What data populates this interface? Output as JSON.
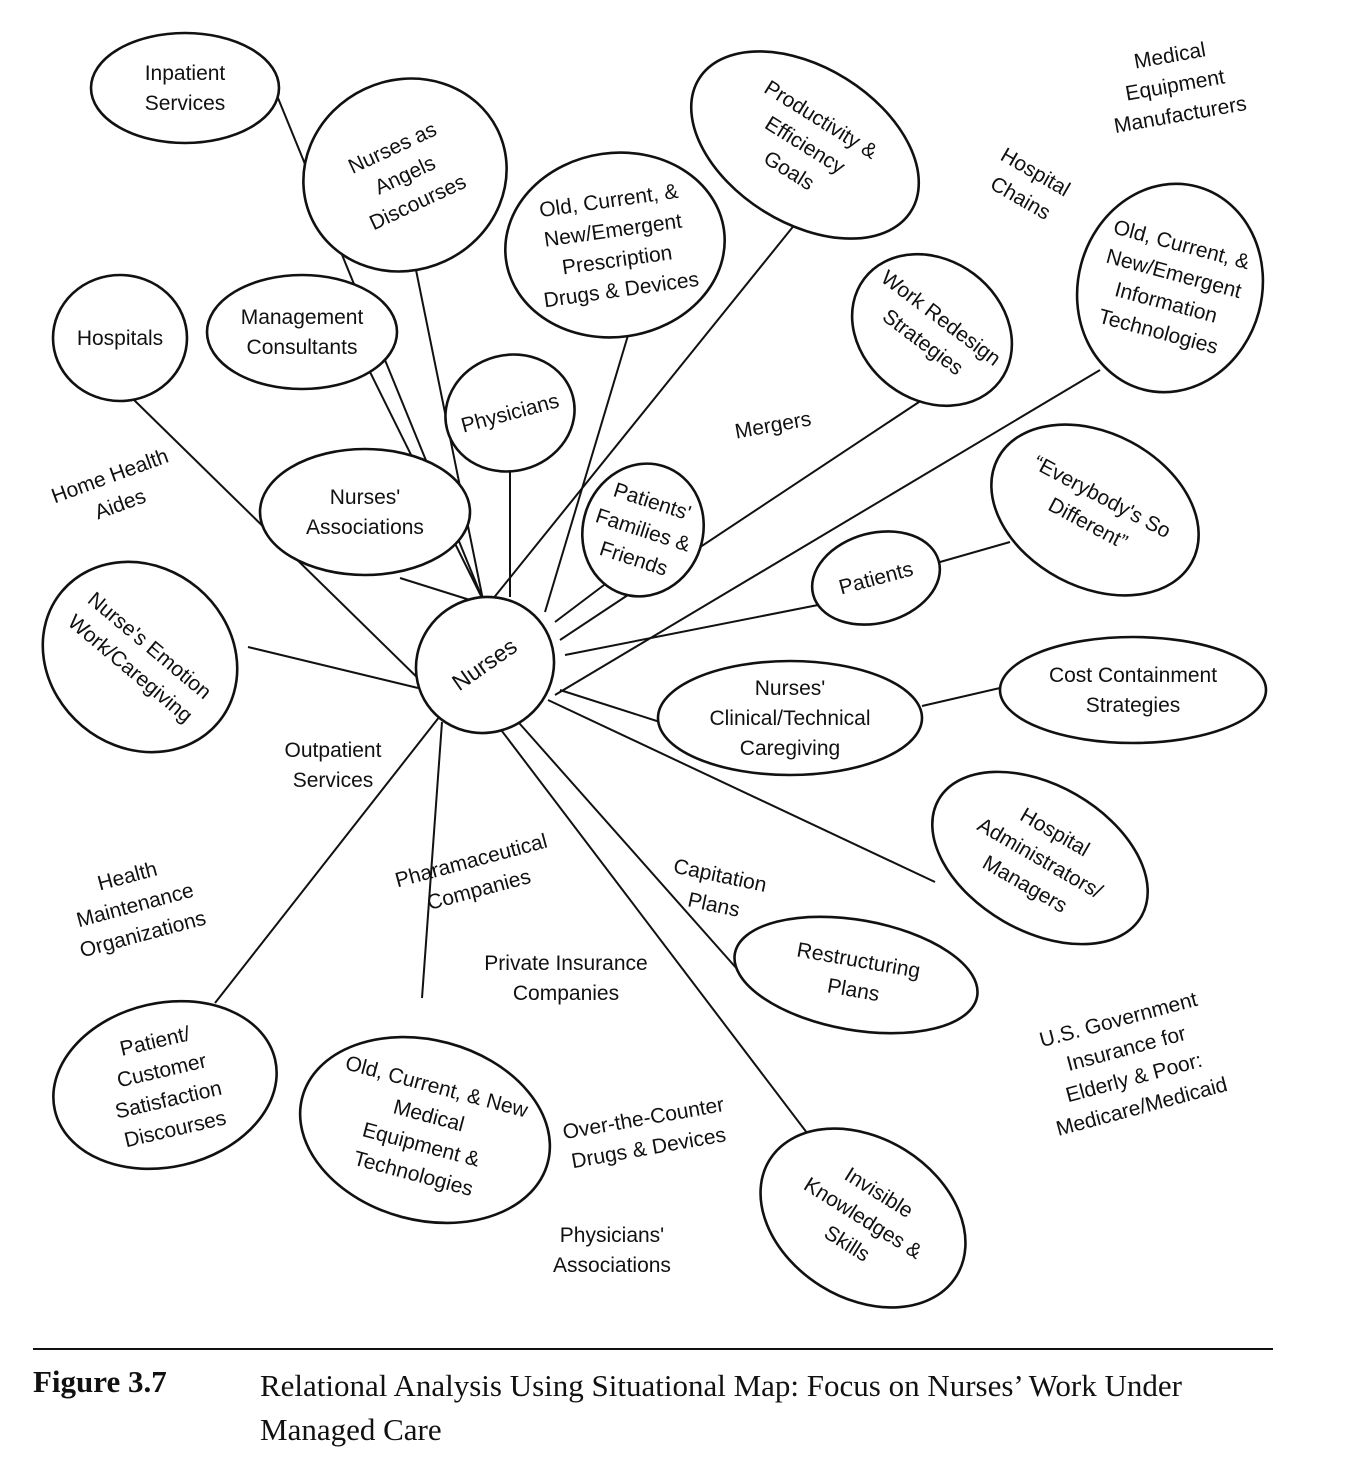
{
  "center": {
    "label": "Nurses"
  },
  "nodes": {
    "inpatient": [
      "Inpatient",
      "Services"
    ],
    "angels": [
      "Nurses as",
      "Angels",
      "Discourses"
    ],
    "drugs": [
      "Old, Current, &",
      "New/Emergent",
      "Prescription",
      "Drugs & Devices"
    ],
    "productivity": [
      "Productivity &",
      "Efficiency",
      "Goals"
    ],
    "infotech": [
      "Old, Current, &",
      "New/Emergent",
      "Information",
      "Technologies"
    ],
    "workredesign": [
      "Work Redesign",
      "Strategies"
    ],
    "hospitals": [
      "Hospitals"
    ],
    "consultants": [
      "Management",
      "Consultants"
    ],
    "physicians": [
      "Physicians"
    ],
    "associations": [
      "Nurses'",
      "Associations"
    ],
    "families": [
      "Patients'",
      "Families &",
      "Friends"
    ],
    "everybody": [
      "“Everybody's So",
      "Different”"
    ],
    "patients": [
      "Patients"
    ],
    "emotion": [
      "Nurse's Emotion",
      "Work/Caregiving"
    ],
    "clinical": [
      "Nurses'",
      "Clinical/Technical",
      "Caregiving"
    ],
    "cost": [
      "Cost Containment",
      "Strategies"
    ],
    "administrators": [
      "Hospital",
      "Administrators/",
      "Managers"
    ],
    "restructuring": [
      "Restructuring",
      "Plans"
    ],
    "satisfaction": [
      "Patient/",
      "Customer",
      "Satisfaction",
      "Discourses"
    ],
    "equipment": [
      "Old, Current, & New",
      "Medical",
      "Equipment &",
      "Technologies"
    ],
    "invisible": [
      "Invisible",
      "Knowledges &",
      "Skills"
    ]
  },
  "free_labels": {
    "med_equip_mfr": [
      "Medical",
      "Equipment",
      "Manufacturers"
    ],
    "hospital_chains": [
      "Hospital",
      "Chains"
    ],
    "mergers": [
      "Mergers"
    ],
    "home_health": [
      "Home Health",
      "Aides"
    ],
    "outpatient": [
      "Outpatient",
      "Services"
    ],
    "hmo": [
      "Health",
      "Maintenance",
      "Organizations"
    ],
    "pharma": [
      "Pharamaceutical",
      "Companies"
    ],
    "capitation": [
      "Capitation",
      "Plans"
    ],
    "private_ins": [
      "Private Insurance",
      "Companies"
    ],
    "gov_ins": [
      "U.S. Government",
      "Insurance for",
      "Elderly & Poor:",
      "Medicare/Medicaid"
    ],
    "otc": [
      "Over-the-Counter",
      "Drugs & Devices"
    ],
    "phys_assoc": [
      "Physicians'",
      "Associations"
    ]
  },
  "caption": {
    "label": "Figure 3.7",
    "text": "Relational Analysis Using Situational Map: Focus on Nurses’ Work Under Managed Care"
  }
}
